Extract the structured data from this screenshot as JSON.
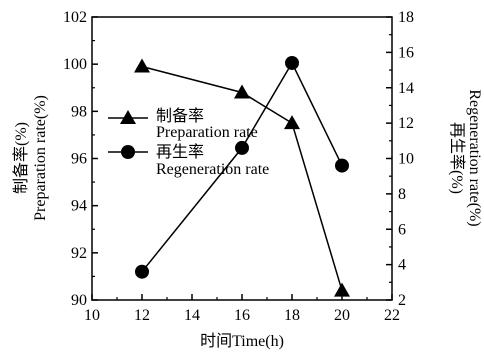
{
  "chart_data": {
    "type": "line",
    "xlabel": "时间Time(h)",
    "ylabel_left": [
      "制备率(%)",
      "Preparation rate(%)"
    ],
    "ylabel_right": [
      "再生率(%)",
      "Regeneration rate(%)"
    ],
    "xlim": [
      10,
      22
    ],
    "ylim_left": [
      90,
      102
    ],
    "ylim_right": [
      2,
      18
    ],
    "x_ticks": [
      10,
      12,
      14,
      16,
      18,
      20,
      22
    ],
    "y_left_ticks": [
      90,
      92,
      94,
      96,
      98,
      100,
      102
    ],
    "y_right_ticks": [
      2,
      4,
      6,
      8,
      10,
      12,
      14,
      16,
      18
    ],
    "grid": false,
    "legend_position": "center-left",
    "series": [
      {
        "name": "制备率",
        "name_en": "Preparation rate",
        "marker": "triangle",
        "axis": "left",
        "x": [
          12,
          16,
          18,
          20
        ],
        "y": [
          99.9,
          98.8,
          97.5,
          90.4
        ]
      },
      {
        "name": "再生率",
        "name_en": "Regeneration rate",
        "marker": "circle",
        "axis": "right",
        "x": [
          12,
          16,
          18,
          20
        ],
        "y": [
          3.6,
          10.6,
          15.4,
          9.6
        ]
      }
    ]
  }
}
